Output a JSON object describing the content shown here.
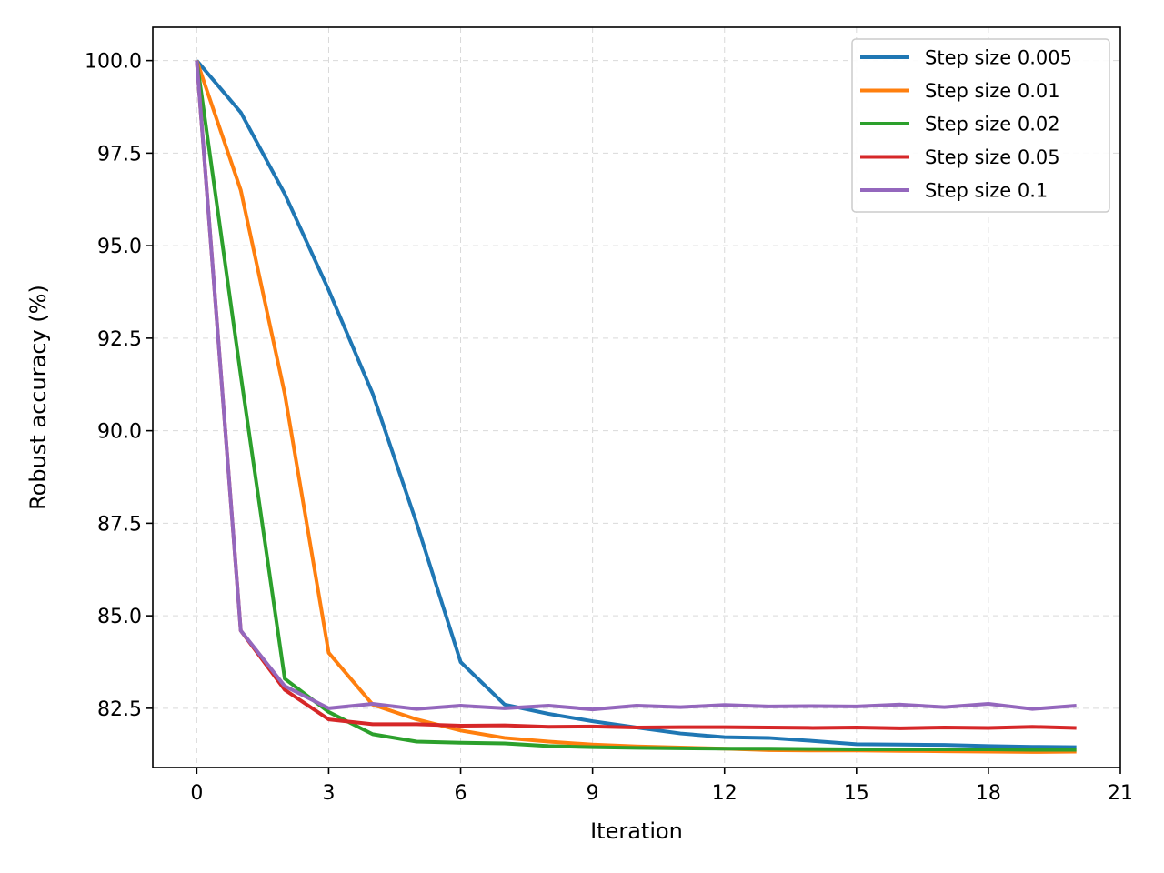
{
  "chart_data": {
    "type": "line",
    "title": "",
    "xlabel": "Iteration",
    "ylabel": "Robust accuracy (%)",
    "xlim": [
      -1,
      21
    ],
    "ylim": [
      80.9,
      100.9
    ],
    "xticks": [
      0,
      3,
      6,
      9,
      12,
      15,
      18,
      21
    ],
    "yticks": [
      82.5,
      85.0,
      87.5,
      90.0,
      92.5,
      95.0,
      97.5,
      100.0
    ],
    "xtick_labels": [
      "0",
      "3",
      "6",
      "9",
      "12",
      "15",
      "18",
      "21"
    ],
    "ytick_labels": [
      "82.5",
      "85.0",
      "87.5",
      "90.0",
      "92.5",
      "95.0",
      "97.5",
      "100.0"
    ],
    "grid": true,
    "legend_position": "top-right",
    "x": [
      0,
      1,
      2,
      3,
      4,
      5,
      6,
      7,
      8,
      9,
      10,
      11,
      12,
      13,
      14,
      15,
      16,
      17,
      18,
      19,
      20
    ],
    "series": [
      {
        "name": "Step size 0.005",
        "color": "#1f77b4",
        "values": [
          100.0,
          98.6,
          96.4,
          93.8,
          91.0,
          87.5,
          83.75,
          82.6,
          82.35,
          82.15,
          81.98,
          81.82,
          81.72,
          81.7,
          81.62,
          81.53,
          81.52,
          81.51,
          81.48,
          81.46,
          81.45
        ]
      },
      {
        "name": "Step size 0.01",
        "color": "#ff7f0e",
        "values": [
          100.0,
          96.5,
          91.0,
          84.0,
          82.6,
          82.2,
          81.9,
          81.7,
          81.6,
          81.52,
          81.47,
          81.44,
          81.41,
          81.37,
          81.36,
          81.36,
          81.35,
          81.34,
          81.33,
          81.32,
          81.33
        ]
      },
      {
        "name": "Step size 0.02",
        "color": "#2ca02c",
        "values": [
          100.0,
          91.5,
          83.3,
          82.4,
          81.8,
          81.6,
          81.57,
          81.55,
          81.48,
          81.45,
          81.43,
          81.42,
          81.41,
          81.41,
          81.4,
          81.39,
          81.39,
          81.39,
          81.39,
          81.38,
          81.38
        ]
      },
      {
        "name": "Step size 0.05",
        "color": "#d62728",
        "values": [
          100.0,
          84.6,
          83.0,
          82.2,
          82.07,
          82.07,
          82.03,
          82.04,
          82.0,
          82.01,
          81.98,
          81.99,
          81.99,
          81.98,
          81.97,
          81.98,
          81.96,
          81.98,
          81.97,
          82.0,
          81.97
        ]
      },
      {
        "name": "Step size 0.1",
        "color": "#9467bd",
        "values": [
          100.0,
          84.6,
          83.1,
          82.5,
          82.62,
          82.48,
          82.57,
          82.5,
          82.57,
          82.47,
          82.57,
          82.53,
          82.59,
          82.55,
          82.56,
          82.55,
          82.6,
          82.53,
          82.62,
          82.48,
          82.57
        ]
      }
    ]
  }
}
